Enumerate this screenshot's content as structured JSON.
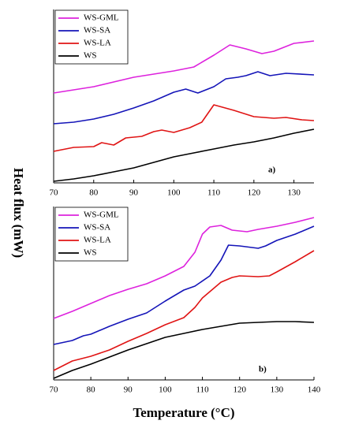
{
  "ylabel": "Heat flux (mW)",
  "xlabel": "Temperature (°C)",
  "chart_data": [
    {
      "type": "line",
      "annotation": "a)",
      "xlim": [
        70,
        135
      ],
      "xticks": [
        70,
        80,
        90,
        100,
        110,
        120,
        130
      ],
      "ylim": [
        0,
        220
      ],
      "legend": "upper left",
      "series": [
        {
          "name": "WS-GML",
          "color": "#dd22dd",
          "x": [
            70,
            80,
            90,
            100,
            105,
            110,
            114,
            118,
            122,
            125,
            130,
            135
          ],
          "values": [
            114,
            122,
            134,
            142,
            147,
            162,
            175,
            170,
            164,
            167,
            177,
            180
          ]
        },
        {
          "name": "WS-SA",
          "color": "#1414b8",
          "x": [
            70,
            75,
            80,
            85,
            90,
            95,
            100,
            103,
            106,
            110,
            113,
            116,
            118,
            121,
            124,
            128,
            135
          ],
          "values": [
            75,
            77,
            81,
            87,
            95,
            104,
            115,
            119,
            114,
            122,
            132,
            134,
            136,
            141,
            136,
            139,
            137
          ]
        },
        {
          "name": "WS-LA",
          "color": "#e01414",
          "x": [
            70,
            75,
            80,
            82,
            85,
            88,
            92,
            95,
            97,
            100,
            104,
            107,
            110,
            115,
            120,
            125,
            128,
            132,
            135
          ],
          "values": [
            40,
            45,
            46,
            51,
            48,
            57,
            59,
            65,
            67,
            64,
            70,
            77,
            99,
            92,
            84,
            82,
            83,
            80,
            79
          ]
        },
        {
          "name": "WS",
          "color": "#000000",
          "x": [
            70,
            75,
            80,
            85,
            90,
            95,
            100,
            105,
            110,
            115,
            120,
            125,
            130,
            135
          ],
          "values": [
            2,
            5,
            9,
            14,
            19,
            26,
            33,
            38,
            43,
            48,
            52,
            57,
            63,
            68
          ]
        }
      ]
    },
    {
      "type": "line",
      "annotation": "b)",
      "xlim": [
        70,
        140
      ],
      "xticks": [
        70,
        80,
        90,
        100,
        110,
        120,
        130,
        140
      ],
      "ylim": [
        0,
        220
      ],
      "legend": "upper left",
      "series": [
        {
          "name": "WS-GML",
          "color": "#dd22dd",
          "x": [
            70,
            75,
            80,
            85,
            90,
            95,
            100,
            105,
            108,
            110,
            112,
            115,
            118,
            122,
            125,
            130,
            135,
            140
          ],
          "values": [
            78,
            87,
            97,
            107,
            115,
            122,
            132,
            144,
            162,
            185,
            194,
            196,
            190,
            188,
            191,
            195,
            200,
            206
          ]
        },
        {
          "name": "WS-SA",
          "color": "#1414b8",
          "x": [
            70,
            75,
            78,
            80,
            85,
            90,
            95,
            100,
            105,
            108,
            112,
            115,
            117,
            120,
            125,
            127,
            130,
            135,
            140
          ],
          "values": [
            45,
            50,
            56,
            58,
            68,
            77,
            85,
            100,
            114,
            119,
            132,
            152,
            171,
            170,
            167,
            170,
            177,
            185,
            195
          ]
        },
        {
          "name": "WS-LA",
          "color": "#e01414",
          "x": [
            70,
            75,
            80,
            85,
            90,
            95,
            100,
            105,
            108,
            110,
            115,
            118,
            120,
            125,
            128,
            130,
            135,
            140
          ],
          "values": [
            12,
            24,
            30,
            38,
            49,
            59,
            70,
            79,
            92,
            104,
            124,
            130,
            132,
            131,
            132,
            137,
            150,
            164
          ]
        },
        {
          "name": "WS",
          "color": "#000000",
          "x": [
            70,
            75,
            80,
            85,
            90,
            95,
            100,
            105,
            110,
            115,
            120,
            125,
            130,
            135,
            140
          ],
          "values": [
            2,
            12,
            20,
            29,
            38,
            46,
            54,
            59,
            64,
            68,
            72,
            73,
            74,
            74,
            73
          ]
        }
      ]
    }
  ]
}
